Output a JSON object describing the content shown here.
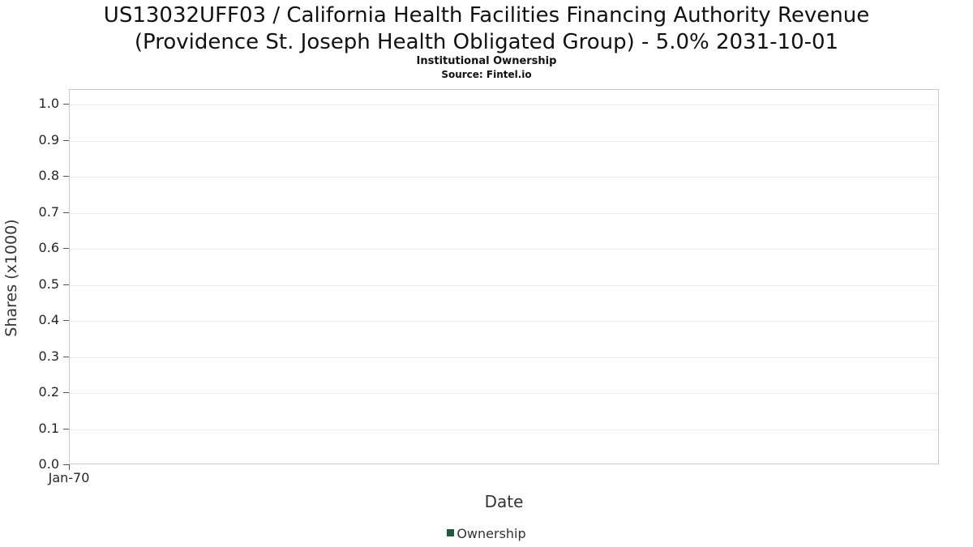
{
  "title_line1": "US13032UFF03 / California Health Facilities Financing Authority Revenue",
  "title_line2": "(Providence St. Joseph Health Obligated Group) - 5.0% 2031-10-01",
  "subtitle": "Institutional Ownership",
  "source": "Source: Fintel.io",
  "chart_data": {
    "type": "line",
    "title": "US13032UFF03 / California Health Facilities Financing Authority Revenue (Providence St. Joseph Health Obligated Group) - 5.0% 2031-10-01",
    "subtitle": "Institutional Ownership",
    "source": "Source: Fintel.io",
    "xlabel": "Date",
    "ylabel": "Shares (x1000)",
    "ylim": [
      0.0,
      1.05
    ],
    "yticks": [
      "1.0",
      "0.9",
      "0.8",
      "0.7",
      "0.6",
      "0.5",
      "0.4",
      "0.3",
      "0.2",
      "0.1",
      "0.0"
    ],
    "xticks": [
      "Jan-70"
    ],
    "grid": true,
    "legend_position": "bottom",
    "series": [
      {
        "name": "Ownership",
        "color": "#1F5C3E",
        "x": [],
        "values": []
      }
    ],
    "legend": [
      {
        "label": "Ownership",
        "color": "#1F5C3E"
      }
    ],
    "note": "Chart plot area is empty; no data points are rendered."
  }
}
